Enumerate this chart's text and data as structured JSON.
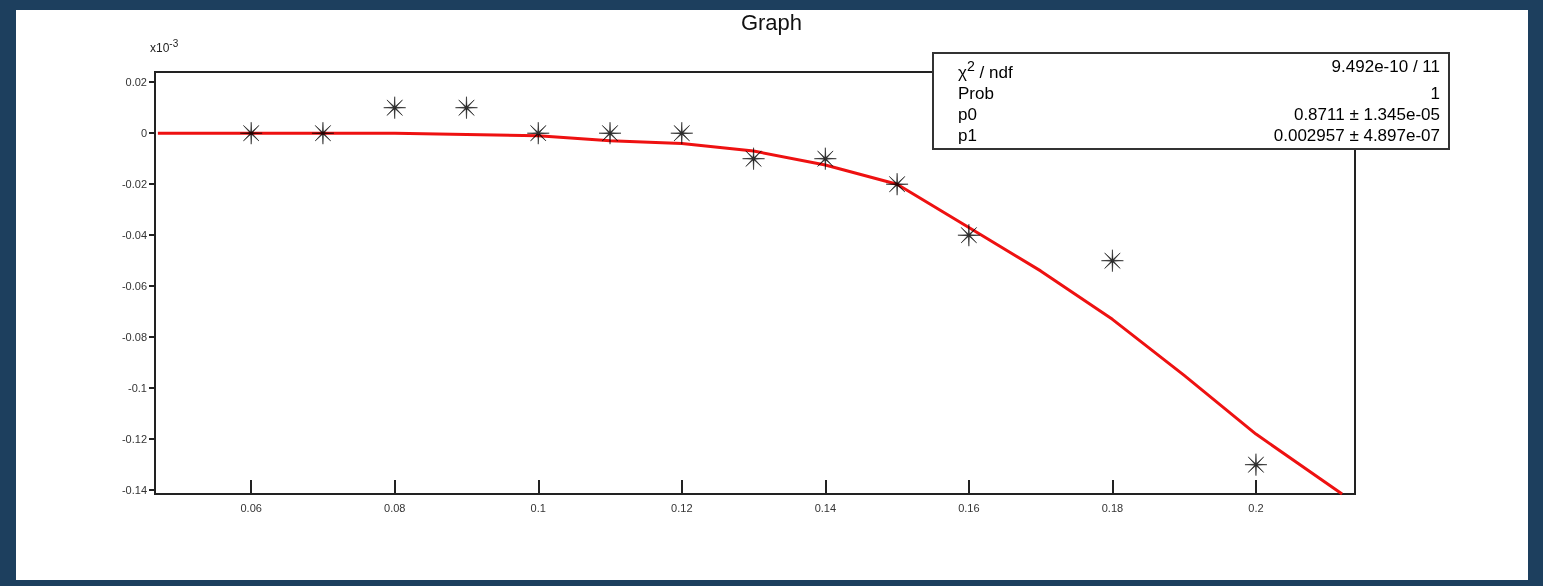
{
  "chart_data": {
    "type": "scatter",
    "title": "Graph",
    "x": [
      0.06,
      0.07,
      0.08,
      0.09,
      0.1,
      0.11,
      0.12,
      0.13,
      0.14,
      0.15,
      0.16,
      0.18,
      0.2
    ],
    "series": [
      {
        "color": "#000000",
        "marker": "star",
        "values": [
          0,
          0,
          0.01,
          0.01,
          0,
          0,
          0,
          -0.01,
          -0.01,
          -0.02,
          -0.04,
          -0.05,
          -0.13
        ]
      },
      {
        "type": "line",
        "color": "#ee1111",
        "marker": "none",
        "line_style": "solid",
        "x": [
          0.047,
          0.06,
          0.08,
          0.09,
          0.1,
          0.11,
          0.12,
          0.13,
          0.14,
          0.15,
          0.16,
          0.17,
          0.18,
          0.19,
          0.2,
          0.212
        ],
        "values": [
          0,
          0,
          0,
          -0.0005,
          -0.001,
          -0.003,
          -0.004,
          -0.007,
          -0.0125,
          -0.02,
          -0.037,
          -0.054,
          -0.073,
          -0.095,
          -0.118,
          -0.1415
        ]
      }
    ],
    "xlim": [
      0.0466,
      0.2138
    ],
    "xticks": [
      0.06,
      0.08,
      0.1,
      0.12,
      0.14,
      0.16,
      0.18,
      0.2
    ],
    "ylim": [
      -0.1415,
      0.024
    ],
    "yticks": [
      -0.14,
      -0.12,
      -0.1,
      -0.08,
      -0.06,
      -0.04,
      -0.02,
      0,
      0.02
    ],
    "grid": false,
    "annotations": [
      "x10$^{-3}$",
      "χ$^{2}$ / ndf",
      "9.492e-10 / 11",
      "Prob",
      "1",
      "p0",
      "0.8711 ±  1.345e-05",
      "p1",
      "0.002957 ±  4.897e-07"
    ]
  }
}
